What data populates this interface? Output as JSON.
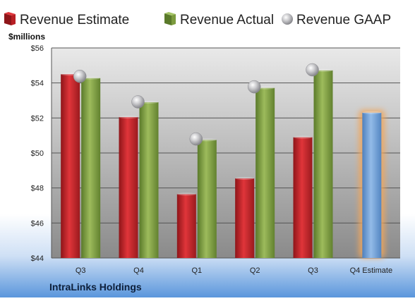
{
  "chart_data": {
    "type": "bar",
    "ylabel": "$millions",
    "ylim": [
      44,
      56
    ],
    "yticks": [
      "$44",
      "$46",
      "$48",
      "$50",
      "$52",
      "$54",
      "$56"
    ],
    "ytick_values": [
      44,
      46,
      48,
      50,
      52,
      54,
      56
    ],
    "categories": [
      "Q3",
      "Q4",
      "Q1",
      "Q2",
      "Q3",
      "Q4 Estimate"
    ],
    "series": [
      {
        "name": "Revenue Estimate",
        "values": [
          54.5,
          52.05,
          47.65,
          48.55,
          50.9,
          null
        ]
      },
      {
        "name": "Revenue Actual",
        "values": [
          54.28,
          52.9,
          50.75,
          53.72,
          54.72,
          null
        ]
      },
      {
        "name": "Revenue GAAP",
        "values": [
          54.38,
          52.92,
          50.8,
          53.78,
          54.75,
          null
        ]
      }
    ],
    "forecast": {
      "category": "Q4 Estimate",
      "value": 52.3
    },
    "legend_position": "top",
    "grid": true,
    "footer": "IntraLinks Holdings",
    "colors": {
      "estimate": "#c0262a",
      "actual": "#7c9b3e",
      "gaap": "#a9a9ad",
      "forecast": "#6f9fd4",
      "forecast_glow": "#f2a65a"
    }
  }
}
